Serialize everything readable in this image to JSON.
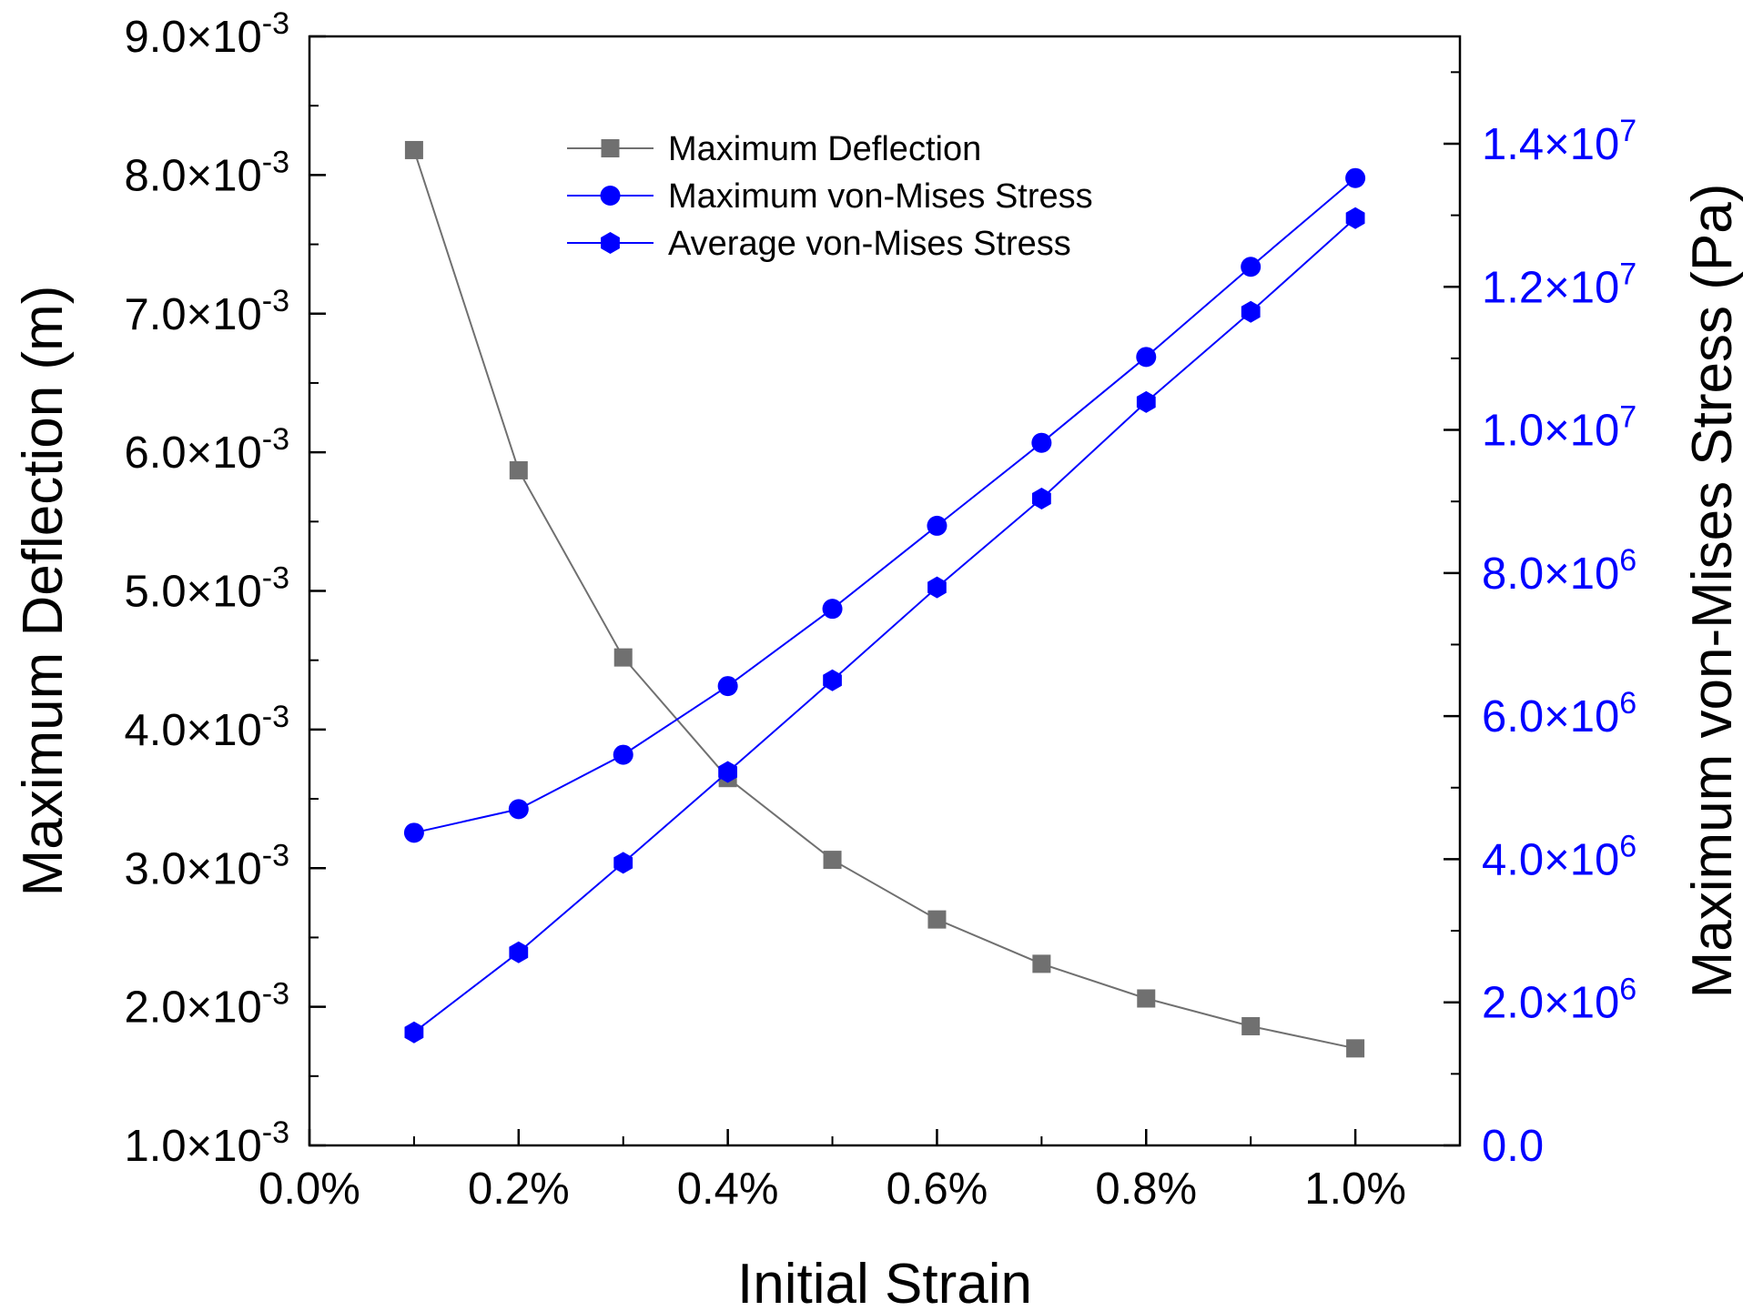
{
  "chart_data": {
    "type": "line",
    "x": [
      0.1,
      0.2,
      0.3,
      0.4,
      0.5,
      0.6,
      0.7,
      0.8,
      0.9,
      1.0
    ],
    "xlabel": "Initial Strain",
    "xlim": [
      0.0,
      1.1
    ],
    "xticks": [
      {
        "value": 0.0,
        "label": "0.0%"
      },
      {
        "value": 0.2,
        "label": "0.2%"
      },
      {
        "value": 0.4,
        "label": "0.4%"
      },
      {
        "value": 0.6,
        "label": "0.6%"
      },
      {
        "value": 0.8,
        "label": "0.8%"
      },
      {
        "value": 1.0,
        "label": "1.0%"
      }
    ],
    "y_left": {
      "label": "Maximum Deflection (m)",
      "lim": [
        0.001,
        0.009
      ],
      "ticks": [
        {
          "value": 0.001,
          "mantissa": "1.0×10",
          "exp": "-3"
        },
        {
          "value": 0.002,
          "mantissa": "2.0×10",
          "exp": "-3"
        },
        {
          "value": 0.003,
          "mantissa": "3.0×10",
          "exp": "-3"
        },
        {
          "value": 0.004,
          "mantissa": "4.0×10",
          "exp": "-3"
        },
        {
          "value": 0.005,
          "mantissa": "5.0×10",
          "exp": "-3"
        },
        {
          "value": 0.006,
          "mantissa": "6.0×10",
          "exp": "-3"
        },
        {
          "value": 0.007,
          "mantissa": "7.0×10",
          "exp": "-3"
        },
        {
          "value": 0.008,
          "mantissa": "8.0×10",
          "exp": "-3"
        },
        {
          "value": 0.009,
          "mantissa": "9.0×10",
          "exp": "-3"
        }
      ],
      "color": "#000000"
    },
    "y_right": {
      "label": "Maximum von-Mises Stress (Pa)",
      "lim": [
        0,
        15500000
      ],
      "ticks": [
        {
          "value": 0,
          "mantissa": "0.0",
          "exp": ""
        },
        {
          "value": 2000000,
          "mantissa": "2.0×10",
          "exp": "6"
        },
        {
          "value": 4000000,
          "mantissa": "4.0×10",
          "exp": "6"
        },
        {
          "value": 6000000,
          "mantissa": "6.0×10",
          "exp": "6"
        },
        {
          "value": 8000000,
          "mantissa": "8.0×10",
          "exp": "6"
        },
        {
          "value": 10000000,
          "mantissa": "1.0×10",
          "exp": "7"
        },
        {
          "value": 12000000,
          "mantissa": "1.2×10",
          "exp": "7"
        },
        {
          "value": 14000000,
          "mantissa": "1.4×10",
          "exp": "7"
        }
      ],
      "color": "#0000ff"
    },
    "series": [
      {
        "name": "Maximum Deflection",
        "axis": "left",
        "marker": "square",
        "color": "#707070",
        "values": [
          0.00818,
          0.00587,
          0.00452,
          0.00365,
          0.00306,
          0.00263,
          0.00231,
          0.00206,
          0.00186,
          0.0017
        ]
      },
      {
        "name": "Maximum von-Mises Stress",
        "axis": "right",
        "marker": "circle",
        "color": "#0000ff",
        "values": [
          4370000,
          4700000,
          5460000,
          6420000,
          7500000,
          8660000,
          9820000,
          11020000,
          12280000,
          13520000
        ]
      },
      {
        "name": "Average von-Mises Stress",
        "axis": "right",
        "marker": "hexagon",
        "color": "#0000ff",
        "values": [
          1580000,
          2700000,
          3950000,
          5220000,
          6500000,
          7800000,
          9040000,
          10390000,
          11650000,
          12960000
        ]
      }
    ],
    "legend_position": "top-center"
  }
}
